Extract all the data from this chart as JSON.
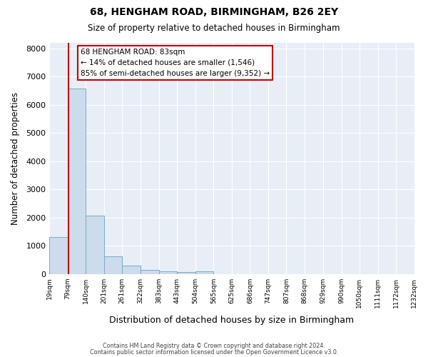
{
  "title1": "68, HENGHAM ROAD, BIRMINGHAM, B26 2EY",
  "title2": "Size of property relative to detached houses in Birmingham",
  "xlabel": "Distribution of detached houses by size in Birmingham",
  "ylabel": "Number of detached properties",
  "bar_edges": [
    19,
    79,
    140,
    201,
    261,
    322,
    383,
    443,
    504,
    565,
    625,
    686,
    747,
    807,
    868,
    929,
    990,
    1050,
    1111,
    1172,
    1232
  ],
  "bar_heights": [
    1310,
    6580,
    2080,
    640,
    295,
    150,
    90,
    75,
    90,
    0,
    0,
    0,
    0,
    0,
    0,
    0,
    0,
    0,
    0,
    0
  ],
  "bar_color": "#ccdcec",
  "bar_edgecolor": "#7aaac8",
  "vline_color": "#cc0000",
  "vline_x": 83,
  "ylim": [
    0,
    8200
  ],
  "yticks": [
    0,
    1000,
    2000,
    3000,
    4000,
    5000,
    6000,
    7000,
    8000
  ],
  "annotation_title": "68 HENGHAM ROAD: 83sqm",
  "annotation_line1": "← 14% of detached houses are smaller (1,546)",
  "annotation_line2": "85% of semi-detached houses are larger (9,352) →",
  "annotation_box_color": "#ffffff",
  "annotation_box_edgecolor": "#cc0000",
  "bg_color": "#e8eef5",
  "grid_color": "#ffffff",
  "fig_bg": "#ffffff",
  "footer1": "Contains HM Land Registry data © Crown copyright and database right 2024.",
  "footer2": "Contains public sector information licensed under the Open Government Licence v3.0."
}
